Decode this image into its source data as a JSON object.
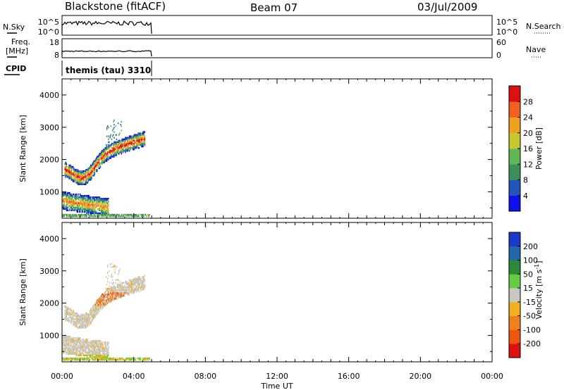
{
  "header": {
    "station": "Blackstone (fitACF)",
    "beam": "Beam 07",
    "date": "03/Jul/2009"
  },
  "side_labels": {
    "nsky": "N.Sky",
    "freq_line1": "Freq.",
    "freq_line2": "[MHz]",
    "cpid": "CPID",
    "nsearch": "N.Search",
    "nave": "Nave"
  },
  "noise_panel": {
    "left_ticks": [
      "10^5",
      "10^0"
    ],
    "right_ticks": [
      "10^5",
      "10^0"
    ]
  },
  "freq_panel": {
    "left_ticks": [
      "18",
      "8"
    ],
    "right_ticks": [
      "60",
      "0"
    ]
  },
  "cpid_text": "themis (tau) 3310",
  "chart_data": {
    "type": "heatmap",
    "x_ticks": [
      "00:00",
      "04:00",
      "08:00",
      "12:00",
      "16:00",
      "20:00",
      "00:00"
    ],
    "xlabel": "Time UT",
    "xlim_hours": [
      0,
      24
    ],
    "data_end_hour": 5,
    "panels": [
      {
        "name": "power",
        "ylabel": "Slant Range [km]",
        "ylim": [
          180,
          4500
        ],
        "y_ticks": [
          1000,
          2000,
          3000,
          4000
        ],
        "colorbar": {
          "label": "Power [dB]",
          "ticks": [
            "4",
            "8",
            "12",
            "16",
            "20",
            "24",
            "28"
          ],
          "colors": [
            "#1010ee",
            "#2255bb",
            "#3a8f5a",
            "#5fb858",
            "#c8c830",
            "#f0a020",
            "#f06020",
            "#dd1111"
          ]
        }
      },
      {
        "name": "velocity",
        "ylabel": "Slant Range [km]",
        "ylim": [
          180,
          4500
        ],
        "y_ticks": [
          1000,
          2000,
          3000,
          4000
        ],
        "colorbar": {
          "label": "Velocity [m s",
          "label_sup": "-1",
          "label_end": "]",
          "ticks": [
            "200",
            "100",
            "50",
            "15",
            "-15",
            "-50",
            "-100",
            "-200"
          ],
          "colors": [
            "#1a3acc",
            "#2266aa",
            "#2a8a3a",
            "#66cc44",
            "#c8c8c0",
            "#f0b020",
            "#f08020",
            "#ee5511",
            "#dd1111"
          ]
        }
      }
    ]
  }
}
